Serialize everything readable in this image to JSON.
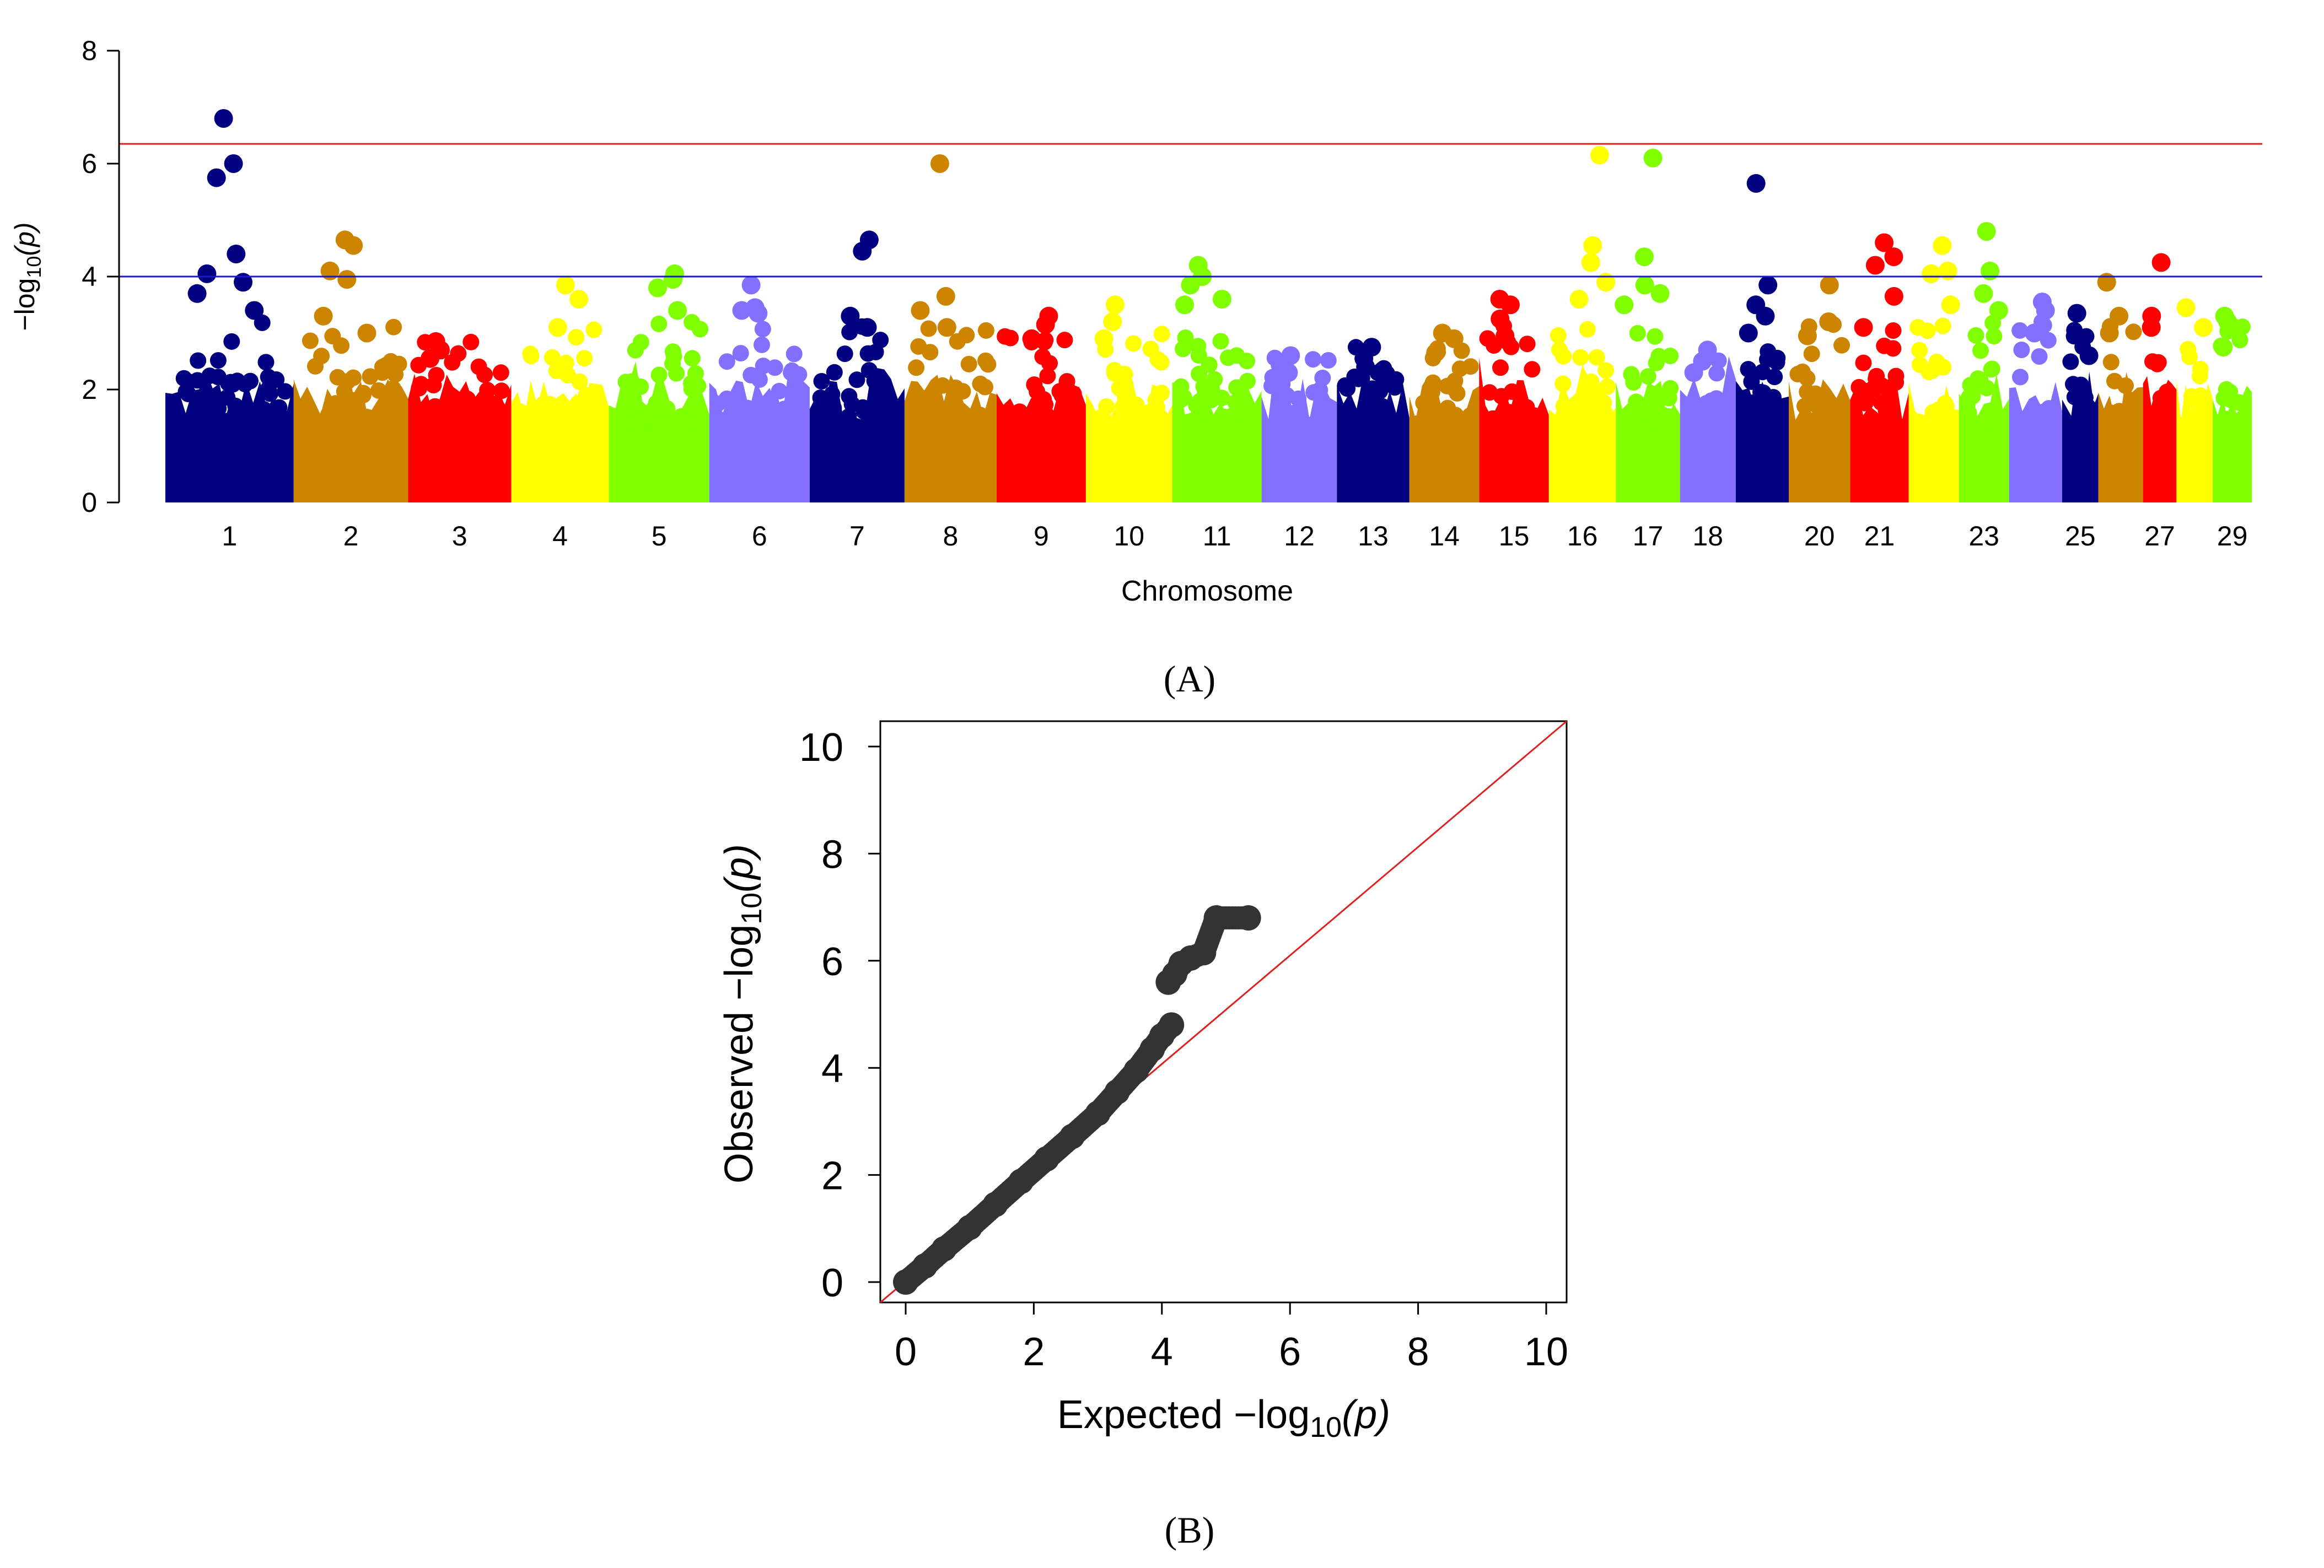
{
  "chart_data": [
    {
      "panel_label": "(A)",
      "panel_letter": "A",
      "type": "scatter",
      "subtype": "manhattan",
      "title": "",
      "xlabel": "Chromosome",
      "ylabel": "−log₁₀(p)",
      "ylabel_parts": {
        "prefix": "−log",
        "sub": "10",
        "suffix": "(p)"
      },
      "ylim": [
        0,
        8
      ],
      "yticks": [
        "0",
        "2",
        "4",
        "6",
        "8"
      ],
      "suggestive_threshold": 4.0,
      "genomewide_threshold": 6.35,
      "suggestive_line_color": "#1a1acd",
      "genomewide_line_color": "#e02020",
      "chromosomes": [
        {
          "chr": 1,
          "label": "1",
          "color": "#000080",
          "peak": 6.8,
          "top_points": [
            6.8,
            6.0,
            5.75,
            4.4,
            4.05,
            3.9,
            3.7,
            3.4
          ]
        },
        {
          "chr": 2,
          "label": "2",
          "color": "#CD8500",
          "peak": 4.6,
          "top_points": [
            4.65,
            4.55,
            4.1,
            3.95,
            3.3,
            3.0
          ]
        },
        {
          "chr": 3,
          "label": "3",
          "color": "#FF0000",
          "peak": 2.9,
          "top_points": [
            2.85,
            2.7,
            2.55
          ]
        },
        {
          "chr": 4,
          "label": "4",
          "color": "#FFFF00",
          "peak": 3.85,
          "top_points": [
            3.85,
            3.6,
            3.1
          ]
        },
        {
          "chr": 5,
          "label": "5",
          "color": "#7FFF00",
          "peak": 4.05,
          "top_points": [
            4.05,
            3.95,
            3.8,
            3.4
          ]
        },
        {
          "chr": 6,
          "label": "6",
          "color": "#8470FF",
          "peak": 3.85,
          "top_points": [
            3.85,
            3.45,
            3.4,
            3.35
          ]
        },
        {
          "chr": 7,
          "label": "7",
          "color": "#000080",
          "peak": 4.65,
          "top_points": [
            4.65,
            4.45,
            3.3,
            3.1
          ]
        },
        {
          "chr": 8,
          "label": "8",
          "color": "#CD8500",
          "peak": 6.0,
          "top_points": [
            6.0,
            3.65,
            3.4,
            3.1
          ]
        },
        {
          "chr": 9,
          "label": "9",
          "color": "#FF0000",
          "peak": 3.3,
          "top_points": [
            3.3,
            3.15,
            2.9
          ]
        },
        {
          "chr": 10,
          "label": "10",
          "color": "#FFFF00",
          "peak": 3.5,
          "top_points": [
            3.5,
            3.2,
            2.9
          ]
        },
        {
          "chr": 11,
          "label": "11",
          "color": "#7FFF00",
          "peak": 4.2,
          "top_points": [
            4.2,
            4.0,
            3.85,
            3.6,
            3.5
          ]
        },
        {
          "chr": 12,
          "label": "12",
          "color": "#8470FF",
          "peak": 2.6,
          "top_points": [
            2.6,
            2.3,
            2.1
          ]
        },
        {
          "chr": 13,
          "label": "13",
          "color": "#000080",
          "peak": 2.75,
          "top_points": [
            2.75,
            2.55,
            2.4
          ]
        },
        {
          "chr": 14,
          "label": "14",
          "color": "#CD8500",
          "peak": 3.0,
          "top_points": [
            3.0,
            2.9,
            2.65
          ]
        },
        {
          "chr": 15,
          "label": "15",
          "color": "#FF0000",
          "peak": 3.6,
          "top_points": [
            3.6,
            3.5,
            3.25,
            2.95
          ]
        },
        {
          "chr": 16,
          "label": "16",
          "color": "#FFFF00",
          "peak": 6.15,
          "top_points": [
            6.15,
            4.55,
            4.25,
            3.9,
            3.6
          ]
        },
        {
          "chr": 17,
          "label": "17",
          "color": "#7FFF00",
          "peak": 6.1,
          "top_points": [
            6.1,
            4.35,
            3.85,
            3.7,
            3.5
          ]
        },
        {
          "chr": 18,
          "label": "18",
          "color": "#8470FF",
          "peak": 2.7,
          "top_points": [
            2.7,
            2.5,
            2.3
          ]
        },
        {
          "chr": 19,
          "label": "",
          "color": "#000080",
          "peak": 5.65,
          "top_points": [
            5.65,
            3.85,
            3.5,
            3.3,
            3.0
          ]
        },
        {
          "chr": 20,
          "label": "20",
          "color": "#CD8500",
          "peak": 3.85,
          "top_points": [
            3.85,
            3.2,
            2.95
          ]
        },
        {
          "chr": 21,
          "label": "21",
          "color": "#FF0000",
          "peak": 4.6,
          "top_points": [
            4.6,
            4.35,
            4.2,
            3.65,
            3.1
          ]
        },
        {
          "chr": 22,
          "label": "",
          "color": "#FFFF00",
          "peak": 4.55,
          "top_points": [
            4.55,
            4.1,
            4.05,
            3.5
          ]
        },
        {
          "chr": 23,
          "label": "23",
          "color": "#7FFF00",
          "peak": 4.8,
          "top_points": [
            4.8,
            4.1,
            3.7,
            3.4
          ]
        },
        {
          "chr": 24,
          "label": "",
          "color": "#8470FF",
          "peak": 3.55,
          "top_points": [
            3.55,
            3.4,
            3.0
          ]
        },
        {
          "chr": 25,
          "label": "25",
          "color": "#000080",
          "peak": 3.35,
          "top_points": [
            3.35,
            2.6
          ]
        },
        {
          "chr": 26,
          "label": "",
          "color": "#CD8500",
          "peak": 3.9,
          "top_points": [
            3.9,
            3.3,
            3.0
          ]
        },
        {
          "chr": 27,
          "label": "27",
          "color": "#FF0000",
          "peak": 4.25,
          "top_points": [
            4.25,
            3.3,
            3.1
          ]
        },
        {
          "chr": 28,
          "label": "",
          "color": "#FFFF00",
          "peak": 3.45,
          "top_points": [
            3.45,
            3.1
          ]
        },
        {
          "chr": 29,
          "label": "29",
          "color": "#7FFF00",
          "peak": 3.3,
          "top_points": [
            3.3,
            3.2,
            2.75
          ]
        }
      ]
    },
    {
      "panel_label": "(B)",
      "panel_letter": "B",
      "type": "scatter",
      "subtype": "qq",
      "title": "",
      "xlabel": "Expected −log₁₀(p)",
      "ylabel": "Observed −log₁₀(p)",
      "xlabel_parts": {
        "prefix": "Expected  −log",
        "sub": "10",
        "suffix": "(p)"
      },
      "ylabel_parts": {
        "prefix": "Observed  −log",
        "sub": "10",
        "suffix": "(p)"
      },
      "xlim": [
        0,
        10
      ],
      "ylim": [
        0,
        10
      ],
      "xticks": [
        "0",
        "2",
        "4",
        "6",
        "8",
        "10"
      ],
      "yticks": [
        "0",
        "2",
        "4",
        "6",
        "8",
        "10"
      ],
      "point_color": "#333333",
      "diagonal_color": "#e02020",
      "points": [
        [
          0.0,
          0.0
        ],
        [
          0.3,
          0.3
        ],
        [
          0.6,
          0.62
        ],
        [
          1.0,
          1.02
        ],
        [
          1.4,
          1.45
        ],
        [
          1.8,
          1.88
        ],
        [
          2.2,
          2.3
        ],
        [
          2.6,
          2.72
        ],
        [
          3.0,
          3.15
        ],
        [
          3.3,
          3.55
        ],
        [
          3.6,
          3.95
        ],
        [
          3.85,
          4.35
        ],
        [
          4.0,
          4.6
        ],
        [
          4.15,
          4.8
        ],
        [
          4.1,
          5.6
        ],
        [
          4.2,
          5.75
        ],
        [
          4.3,
          5.95
        ],
        [
          4.45,
          6.05
        ],
        [
          4.65,
          6.15
        ],
        [
          4.85,
          6.8
        ],
        [
          5.35,
          6.8
        ]
      ]
    }
  ]
}
